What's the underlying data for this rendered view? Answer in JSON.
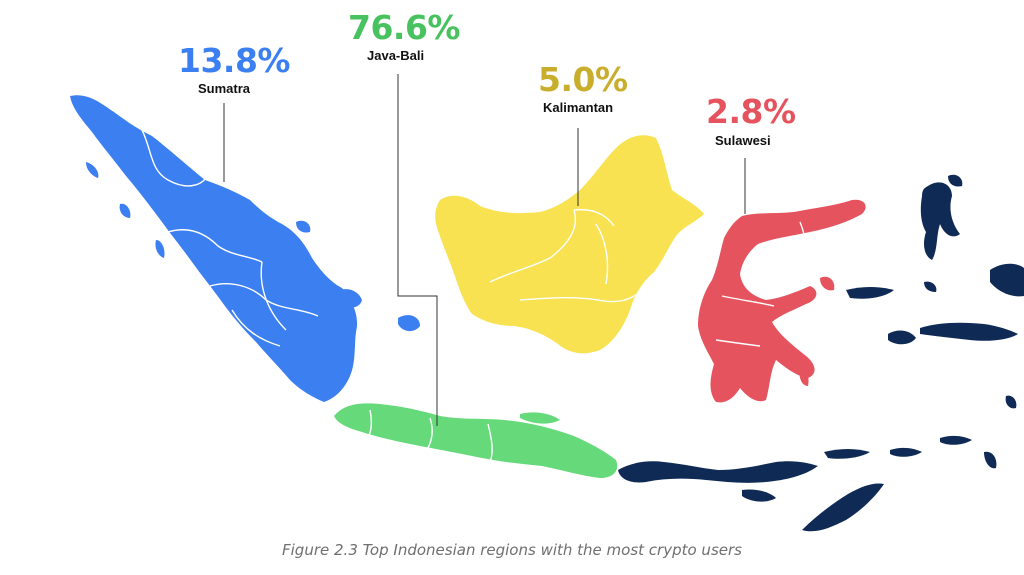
{
  "figure": {
    "caption": "Figure 2.3 Top Indonesian regions with the most crypto users"
  },
  "regions": {
    "sumatra": {
      "name": "Sumatra",
      "percent": "13.8%",
      "value": 13.8,
      "color": "#3b7ff0"
    },
    "java_bali": {
      "name": "Java-Bali",
      "percent": "76.6%",
      "value": 76.6,
      "color": "#66da7a"
    },
    "kalimantan": {
      "name": "Kalimantan",
      "percent": "5.0%",
      "value": 5.0,
      "color": "#f8e251"
    },
    "sulawesi": {
      "name": "Sulawesi",
      "percent": "2.8%",
      "value": 2.8,
      "color": "#e5545e"
    }
  },
  "label_colors": {
    "sumatra": "#3b7ff0",
    "java_bali": "#47c25e",
    "kalimantan": "#c9ae2e",
    "sulawesi": "#e5545e"
  },
  "other_islands_color": "#0f2a55"
}
